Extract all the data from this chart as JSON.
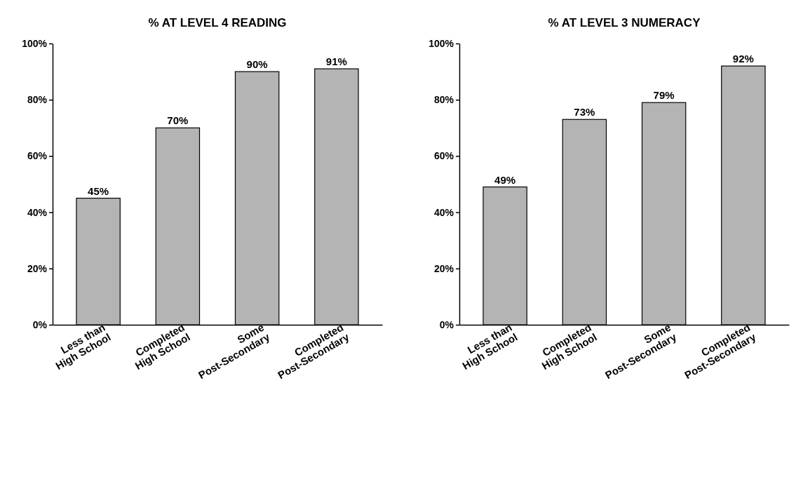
{
  "chart_data": [
    {
      "type": "bar",
      "title": "% AT LEVEL 4 READING",
      "categories": [
        "Less than\nHigh School",
        "Completed\nHigh School",
        "Some\nPost-Secondary",
        "Completed\nPost-Secondary"
      ],
      "values": [
        45,
        70,
        90,
        91
      ],
      "value_labels": [
        "45%",
        "70%",
        "90%",
        "91%"
      ],
      "color": "#b4b4b4",
      "ylim": [
        0,
        100
      ],
      "yticks": [
        {
          "value": 0,
          "label": "0%"
        },
        {
          "value": 20,
          "label": "20%"
        },
        {
          "value": 40,
          "label": "40%"
        },
        {
          "value": 60,
          "label": "60%"
        },
        {
          "value": 80,
          "label": "80%"
        },
        {
          "value": 100,
          "label": "100%"
        }
      ]
    },
    {
      "type": "bar",
      "title": "% AT LEVEL 3 NUMERACY",
      "categories": [
        "Less than\nHigh School",
        "Completed\nHigh School",
        "Some\nPost-Secondary",
        "Completed\nPost-Secondary"
      ],
      "values": [
        49,
        73,
        79,
        92
      ],
      "value_labels": [
        "49%",
        "73%",
        "79%",
        "92%"
      ],
      "color": "#b4b4b4",
      "ylim": [
        0,
        100
      ],
      "yticks": [
        {
          "value": 0,
          "label": "0%"
        },
        {
          "value": 20,
          "label": "20%"
        },
        {
          "value": 40,
          "label": "40%"
        },
        {
          "value": 60,
          "label": "60%"
        },
        {
          "value": 80,
          "label": "80%"
        },
        {
          "value": 100,
          "label": "100%"
        }
      ]
    }
  ]
}
